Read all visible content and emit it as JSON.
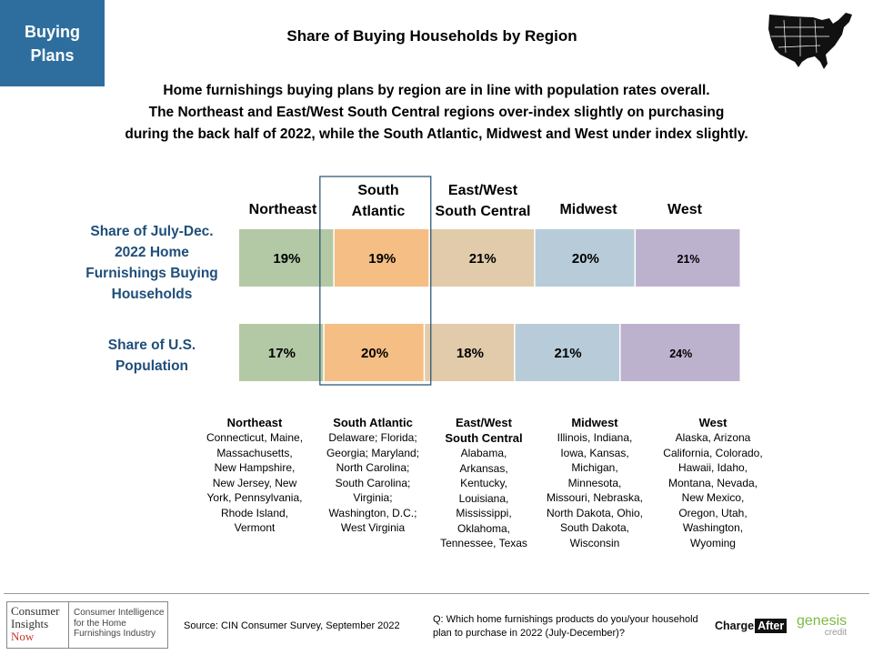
{
  "tag": {
    "line1": "Buying",
    "line2": "Plans"
  },
  "title": "Share of Buying Households by Region",
  "subtitle": [
    "Home furnishings buying plans by region are in line with population rates overall.",
    "The Northeast and East/West South Central regions over-index slightly on purchasing",
    "during the back half of 2022, while the South Atlantic, Midwest and West under index slightly."
  ],
  "chart_data": {
    "type": "bar",
    "orientation": "horizontal-stacked-100",
    "title": "Share of Buying Households by Region",
    "categories": [
      "Northeast",
      "South Atlantic",
      "East/West South Central",
      "Midwest",
      "West"
    ],
    "category_headers": [
      [
        "Northeast"
      ],
      [
        "South",
        "Atlantic"
      ],
      [
        "East/West",
        "South Central"
      ],
      [
        "Midwest"
      ],
      [
        "West"
      ]
    ],
    "series": [
      {
        "name": "Share of July-Dec. 2022 Home Furnishings Buying Households",
        "label_lines": [
          "Share of July-Dec.",
          "2022 Home",
          "Furnishings Buying",
          "Households"
        ],
        "values": [
          19,
          19,
          21,
          20,
          21
        ],
        "value_labels": [
          "19%",
          "19%",
          "21%",
          "20%",
          "21%"
        ]
      },
      {
        "name": "Share of U.S. Population",
        "label_lines": [
          "Share of U.S.",
          "Population"
        ],
        "values": [
          17,
          20,
          18,
          21,
          24
        ],
        "value_labels": [
          "17%",
          "20%",
          "18%",
          "21%",
          "24%"
        ]
      }
    ],
    "colors": [
      "#B3C9A6",
      "#F5BE84",
      "#E2CBAB",
      "#B7CCD8",
      "#BDB2CE"
    ],
    "highlight_category": "South Atlantic",
    "highlight_color": "#1F4E6E",
    "label_color": "#1F4E79",
    "legend": "none"
  },
  "regions": [
    {
      "name": "Northeast",
      "states": [
        "Connecticut, Maine,",
        "Massachusetts,",
        "New Hampshire,",
        "New Jersey, New",
        "York, Pennsylvania,",
        "Rhode Island,",
        "Vermont"
      ]
    },
    {
      "name": "South Atlantic",
      "states": [
        "Delaware; Florida;",
        "Georgia; Maryland;",
        "North Carolina;",
        "South Carolina;",
        "Virginia;",
        "Washington, D.C.;",
        "West Virginia"
      ]
    },
    {
      "name": "East/West South Central",
      "name_lines": [
        "East/West",
        "South Central"
      ],
      "states": [
        "Alabama,",
        "Arkansas,",
        "Kentucky,",
        "Louisiana,",
        "Mississippi,",
        "Oklahoma,",
        "Tennessee, Texas"
      ]
    },
    {
      "name": "Midwest",
      "states": [
        "Illinois, Indiana,",
        "Iowa, Kansas,",
        "Michigan,",
        "Minnesota,",
        "Missouri, Nebraska,",
        "North Dakota, Ohio,",
        "South Dakota,",
        "Wisconsin"
      ]
    },
    {
      "name": "West",
      "states": [
        "Alaska, Arizona",
        "California, Colorado,",
        "Hawaii, Idaho,",
        "Montana, Nevada,",
        "New Mexico,",
        "Oregon, Utah,",
        "Washington,",
        "Wyoming"
      ]
    }
  ],
  "footer": {
    "logo": {
      "line1": "Consumer",
      "line2": "Insights",
      "line3": "Now",
      "tagline": [
        "Consumer Intelligence",
        "for the Home",
        "Furnishings Industry"
      ]
    },
    "source": "Source: CIN Consumer Survey, September 2022",
    "question": "Q: Which home furnishings products do you/your household plan to purchase in 2022 (July-December)?",
    "chargeafter": {
      "part1": "Charge",
      "part2": "After"
    },
    "genesis": {
      "name": "genesis",
      "sub": "credit"
    }
  },
  "icons": [
    "us-map-icon"
  ]
}
